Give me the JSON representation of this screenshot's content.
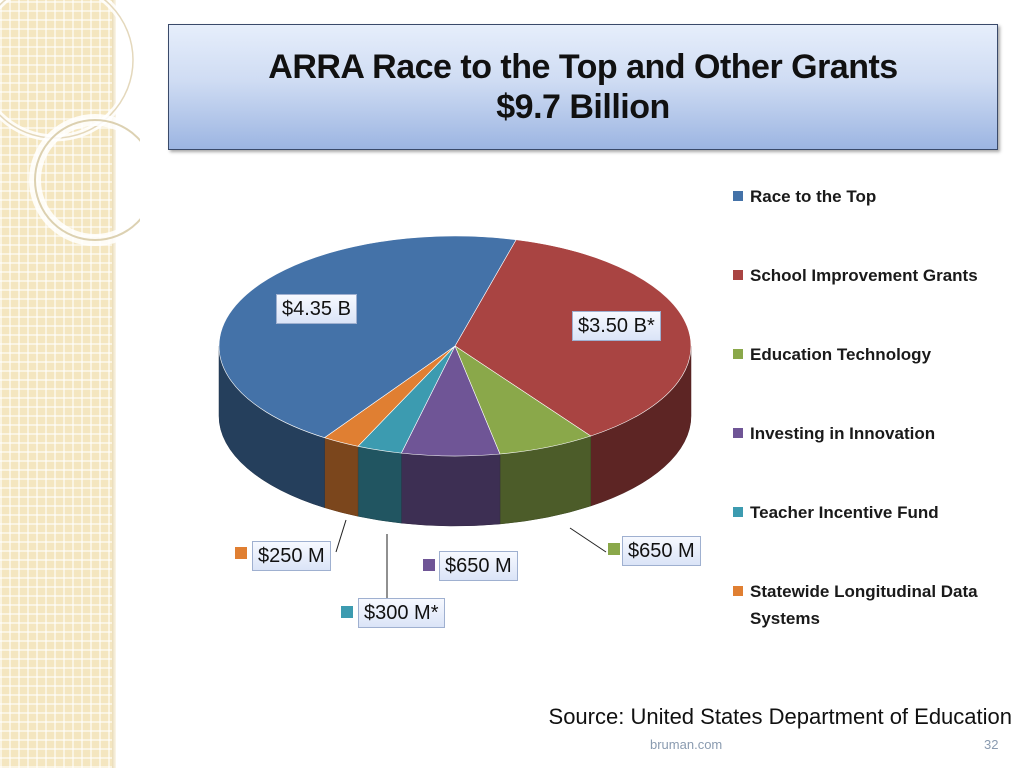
{
  "slide": {
    "title_line1": "ARRA Race to the Top and Other Grants",
    "title_line2": "$9.7 Billion",
    "source": "Source: United States Department of Education",
    "footer_site": "bruman.com",
    "page_number": "32"
  },
  "chart_data": {
    "type": "pie",
    "style": "3d-exploded-perspective",
    "legend_position": "right",
    "categories": [
      "Race to the Top",
      "School Improvement Grants",
      "Education Technology",
      "Investing in Innovation",
      "Teacher Incentive Fund",
      "Statewide Longitudinal Data Systems"
    ],
    "values_usd_millions": [
      4350,
      3500,
      650,
      650,
      300,
      250
    ],
    "data_labels": [
      "$4.35 B",
      "$3.50 B*",
      "$650 M",
      "$650 M",
      "$300 M*",
      "$250 M"
    ],
    "colors": [
      "#4472a8",
      "#a94442",
      "#8aa84a",
      "#6f5596",
      "#3c9bb0",
      "#e07f32"
    ]
  }
}
